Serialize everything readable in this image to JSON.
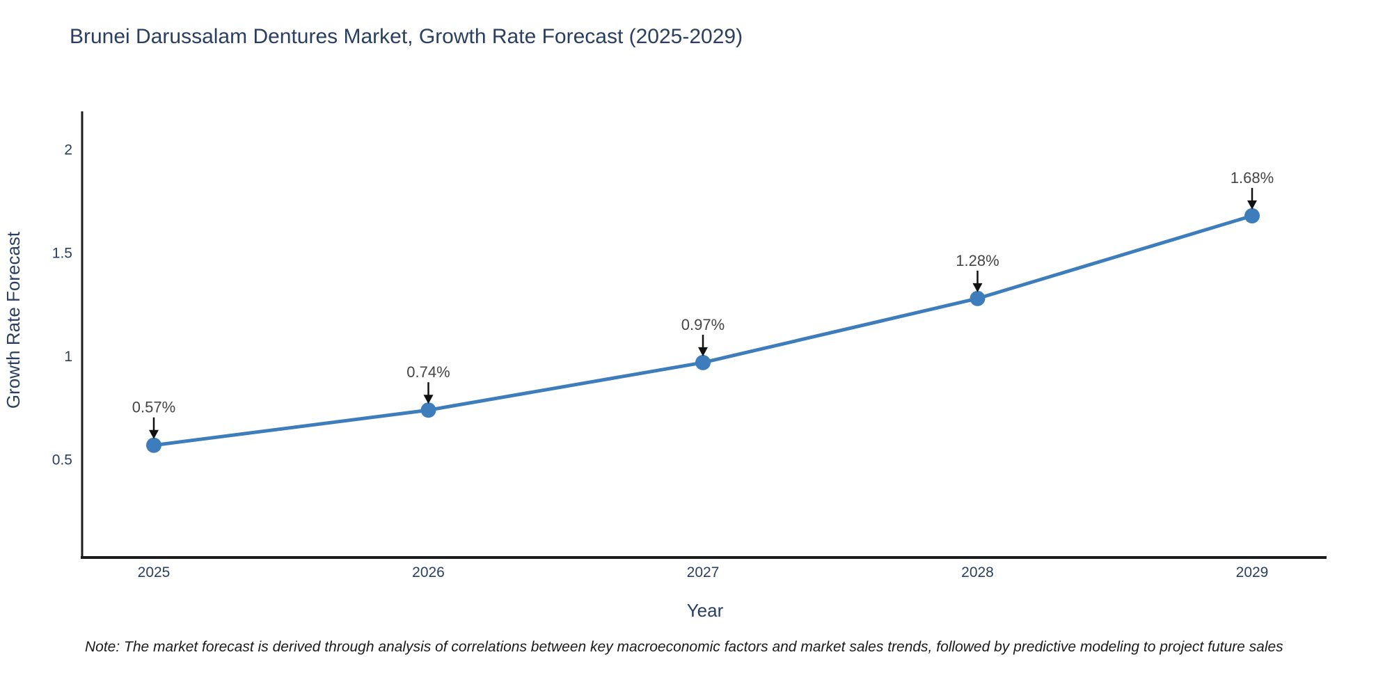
{
  "page": {
    "background": "#ffffff"
  },
  "chart": {
    "note": "Note: The market forecast is derived through analysis of correlations between key macroeconomic factors and market sales trends, followed by predictive modeling to project future sales"
  },
  "chart_data": {
    "type": "line",
    "title": "Brunei Darussalam Dentures Market, Growth Rate Forecast (2025-2029)",
    "xlabel": "Year",
    "ylabel": "Growth Rate Forecast",
    "x": [
      2025,
      2026,
      2027,
      2028,
      2029
    ],
    "xtick_labels": [
      "2025",
      "2026",
      "2027",
      "2028",
      "2029"
    ],
    "series": [
      {
        "name": "Growth Rate Forecast",
        "values": [
          0.57,
          0.74,
          0.97,
          1.28,
          1.68
        ]
      }
    ],
    "point_labels": [
      "0.57%",
      "0.74%",
      "0.97%",
      "1.28%",
      "1.68%"
    ],
    "yticks": [
      0.5,
      1,
      1.5,
      2
    ],
    "ytick_labels": [
      "0.5",
      "1",
      "1.5",
      "2"
    ],
    "ylim": [
      0,
      2.2
    ],
    "grid": false,
    "legend": "none",
    "line_color": "#3e7dbc",
    "marker_color": "#3e7dbc",
    "axis_color": "#1c1c1c",
    "text_color": "#2a3f5f",
    "annotation_color": "#444444",
    "annotation_arrow_color": "#111111"
  }
}
